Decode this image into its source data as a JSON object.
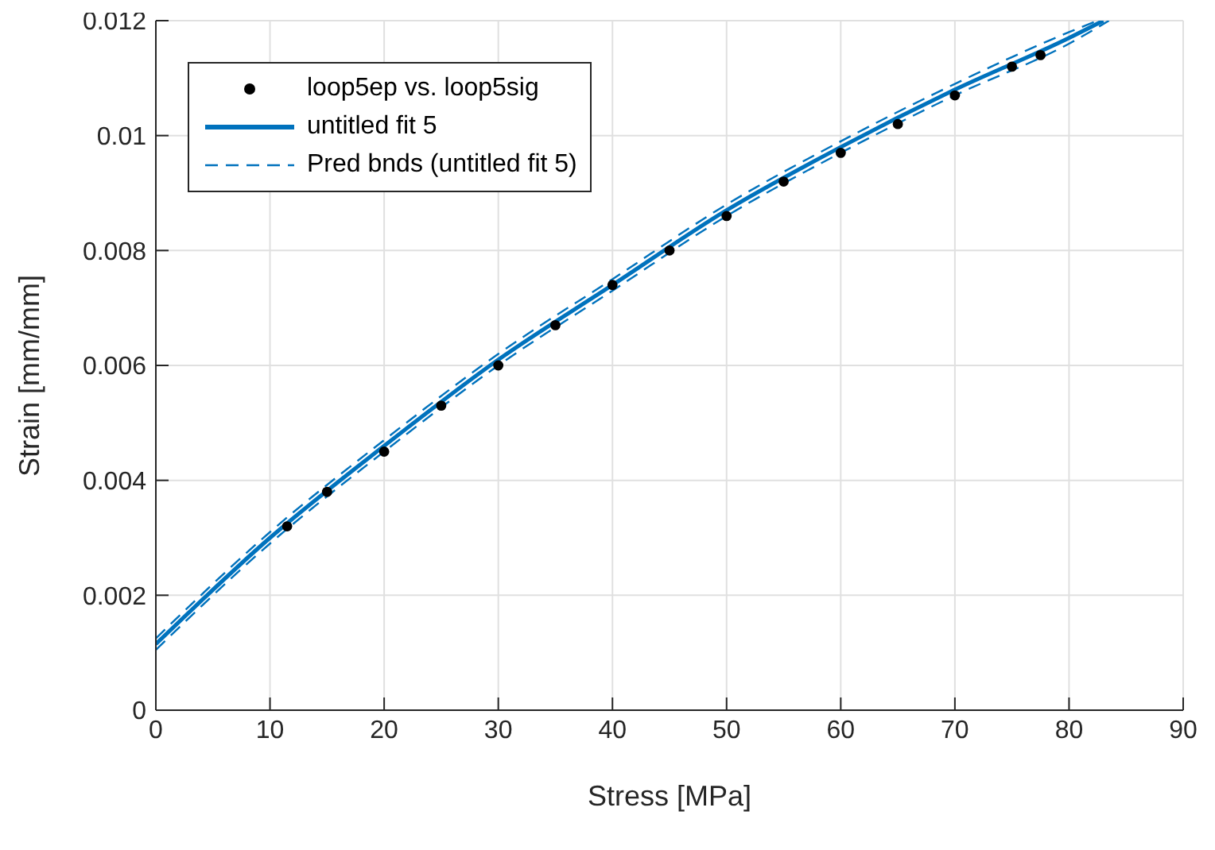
{
  "chart_data": {
    "type": "scatter",
    "xlabel": "Stress [MPa]",
    "ylabel": "Strain [mm/mm]",
    "xlim": [
      0,
      90
    ],
    "ylim": [
      0,
      0.012
    ],
    "xticks": [
      0,
      10,
      20,
      30,
      40,
      50,
      60,
      70,
      80,
      90
    ],
    "yticks": [
      0,
      0.002,
      0.004,
      0.006,
      0.008,
      0.01,
      0.012
    ],
    "grid": true,
    "legend": "top left",
    "series": [
      {
        "name": "loop5ep vs. loop5sig",
        "marker": "circle",
        "color": "#000000",
        "x": [
          11.5,
          15,
          20,
          25,
          30,
          35,
          40,
          45,
          50,
          55,
          60,
          65,
          70,
          75,
          77.5
        ],
        "values": [
          0.0032,
          0.0038,
          0.0045,
          0.0053,
          0.006,
          0.0067,
          0.0074,
          0.008,
          0.0086,
          0.0092,
          0.0097,
          0.0102,
          0.0107,
          0.0112,
          0.0114
        ]
      },
      {
        "name": "untitled fit 5",
        "type": "line",
        "line_style": "solid",
        "color": "#0072bd",
        "x": [
          0,
          10,
          20,
          30,
          40,
          50,
          60,
          70,
          80,
          83
        ],
        "values": [
          0.00115,
          0.003,
          0.0046,
          0.0061,
          0.0074,
          0.0087,
          0.0098,
          0.0108,
          0.0117,
          0.012
        ]
      },
      {
        "name": "Pred bnds (untitled fit 5)",
        "type": "line",
        "line_style": "dashed",
        "color": "#0072bd",
        "x": [
          0,
          10,
          20,
          30,
          40,
          50,
          60,
          70,
          80,
          82.5
        ],
        "values": [
          0.00125,
          0.0031,
          0.0047,
          0.0062,
          0.0075,
          0.0088,
          0.0099,
          0.0109,
          0.0118,
          0.012
        ]
      },
      {
        "type": "line",
        "line_style": "dashed",
        "color": "#0072bd",
        "x": [
          0,
          10,
          20,
          30,
          40,
          50,
          60,
          70,
          80,
          83.5
        ],
        "values": [
          0.00105,
          0.0029,
          0.0045,
          0.006,
          0.0073,
          0.0086,
          0.0097,
          0.0107,
          0.0116,
          0.012
        ]
      }
    ]
  }
}
